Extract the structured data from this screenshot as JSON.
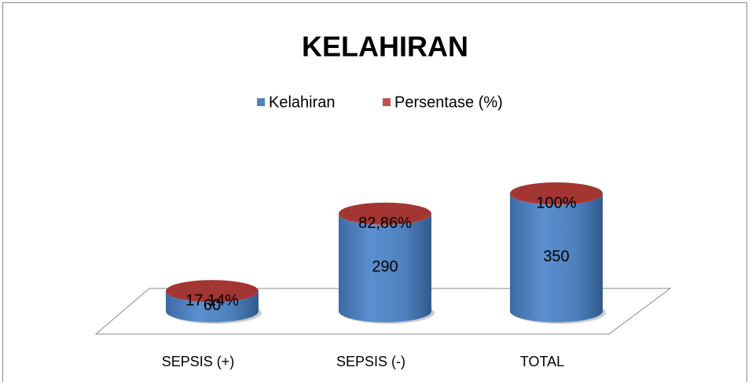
{
  "chart_data": {
    "type": "bar3d-stacked-cylinder",
    "title": "KELAHIRAN",
    "categories": [
      "SEPSIS (+)",
      "SEPSIS (-)",
      "TOTAL"
    ],
    "series": [
      {
        "name": "Kelahiran",
        "color": "#4f81bd",
        "values": [
          60,
          290,
          350
        ]
      },
      {
        "name": "Persentase (%)",
        "color": "#c0504d",
        "values": [
          0.1714,
          0.8286,
          1
        ],
        "value_labels": [
          "17,14%",
          "82,86%",
          "100%"
        ]
      }
    ],
    "legend": "top"
  }
}
